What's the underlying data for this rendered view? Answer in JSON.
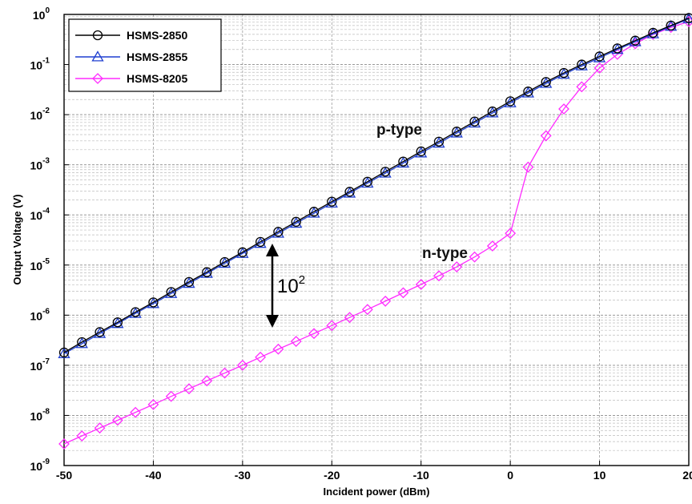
{
  "chart_data": {
    "type": "line",
    "xlabel": "Incident power (dBm)",
    "ylabel": "Output Voltage (V)",
    "xlim": [
      -50,
      20
    ],
    "ylim_log10": [
      -9,
      0
    ],
    "y_scale": "log",
    "grid": true,
    "legend_position": "top-left",
    "x_ticks": [
      "-50",
      "-40",
      "-30",
      "-20",
      "-10",
      "0",
      "10",
      "20"
    ],
    "y_ticks": [
      {
        "base": "10",
        "exp": "0"
      },
      {
        "base": "10",
        "exp": "-1"
      },
      {
        "base": "10",
        "exp": "-2"
      },
      {
        "base": "10",
        "exp": "-3"
      },
      {
        "base": "10",
        "exp": "-4"
      },
      {
        "base": "10",
        "exp": "-5"
      },
      {
        "base": "10",
        "exp": "-6"
      },
      {
        "base": "10",
        "exp": "-7"
      },
      {
        "base": "10",
        "exp": "-8"
      },
      {
        "base": "10",
        "exp": "-9"
      }
    ],
    "x": [
      -50,
      -48,
      -46,
      -44,
      -42,
      -40,
      -38,
      -36,
      -34,
      -32,
      -30,
      -28,
      -26,
      -24,
      -22,
      -20,
      -18,
      -16,
      -14,
      -12,
      -10,
      -8,
      -6,
      -4,
      -2,
      0,
      2,
      4,
      6,
      8,
      10,
      12,
      14,
      16,
      18,
      20
    ],
    "series": [
      {
        "name": "HSMS-2850",
        "color": "#000000",
        "marker": "circle",
        "values": [
          1.8e-07,
          2.9e-07,
          4.6e-07,
          7.2e-07,
          1.15e-06,
          1.8e-06,
          2.9e-06,
          4.6e-06,
          7.2e-06,
          1.15e-05,
          1.8e-05,
          2.9e-05,
          4.6e-05,
          7.3e-05,
          0.000116,
          0.000184,
          0.00029,
          0.00046,
          0.00073,
          0.00116,
          0.00185,
          0.0029,
          0.0046,
          0.0073,
          0.0116,
          0.0185,
          0.029,
          0.045,
          0.068,
          0.1,
          0.145,
          0.21,
          0.3,
          0.43,
          0.6,
          0.85
        ]
      },
      {
        "name": "HSMS-2855",
        "color": "#1f3fd0",
        "marker": "triangle",
        "values": [
          1.7e-07,
          2.7e-07,
          4.3e-07,
          6.8e-07,
          1.08e-06,
          1.7e-06,
          2.7e-06,
          4.3e-06,
          6.8e-06,
          1.08e-05,
          1.7e-05,
          2.7e-05,
          4.3e-05,
          6.8e-05,
          0.000108,
          0.000172,
          0.000272,
          0.00043,
          0.00068,
          0.00108,
          0.00172,
          0.0027,
          0.0043,
          0.0068,
          0.0108,
          0.0172,
          0.027,
          0.042,
          0.064,
          0.094,
          0.136,
          0.2,
          0.285,
          0.41,
          0.58,
          0.82
        ]
      },
      {
        "name": "HSMS-8205",
        "color": "#ff2cff",
        "marker": "diamond",
        "values": [
          2.7e-09,
          3.9e-09,
          5.6e-09,
          8e-09,
          1.15e-08,
          1.65e-08,
          2.4e-08,
          3.4e-08,
          4.9e-08,
          7e-08,
          1e-07,
          1.45e-07,
          2.1e-07,
          3e-07,
          4.3e-07,
          6.2e-07,
          9e-07,
          1.3e-06,
          1.9e-06,
          2.8e-06,
          4.1e-06,
          6.1e-06,
          9.2e-06,
          1.45e-05,
          2.4e-05,
          4.3e-05,
          0.0009,
          0.0038,
          0.013,
          0.036,
          0.085,
          0.16,
          0.26,
          0.4,
          0.55,
          0.72
        ]
      }
    ],
    "annotations": {
      "p_type": "p-type",
      "n_type": "n-type",
      "ratio_base": "10",
      "ratio_exp": "2"
    }
  }
}
